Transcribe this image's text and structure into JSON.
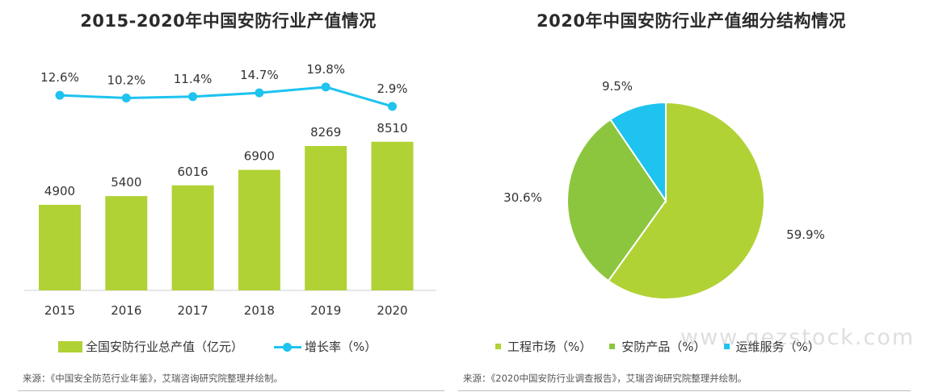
{
  "chart_data": [
    {
      "type": "bar",
      "title": "2015-2020年中国安防行业产值情况",
      "categories": [
        "2015",
        "2016",
        "2017",
        "2018",
        "2019",
        "2020"
      ],
      "series": [
        {
          "name": "全国安防行业总产值（亿元）",
          "values": [
            4900,
            5400,
            6016,
            6900,
            8269,
            8510
          ],
          "color": "#b0d235",
          "type": "bar"
        },
        {
          "name": "增长率（%）",
          "values": [
            12.6,
            10.2,
            11.4,
            14.7,
            19.8,
            2.9
          ],
          "labels": [
            "12.6%",
            "10.2%",
            "11.4%",
            "14.7%",
            "19.8%",
            "2.9%"
          ],
          "color": "#1ec3ef",
          "type": "line"
        }
      ],
      "value_labels": [
        "4900",
        "5400",
        "6016",
        "6900",
        "8269",
        "8510"
      ],
      "legend_position": "bottom",
      "source": "来源：《中国安全防范行业年鉴》，艾瑞咨询研究院整理并绘制。"
    },
    {
      "type": "pie",
      "title": "2020年中国安防行业产值细分结构情况",
      "slices": [
        {
          "name": "工程市场（%）",
          "value": 59.9,
          "label": "59.9%",
          "color": "#b0d235"
        },
        {
          "name": "安防产品（%）",
          "value": 30.6,
          "label": "30.6%",
          "color": "#8cc63f"
        },
        {
          "name": "运维服务（%）",
          "value": 9.5,
          "label": "9.5%",
          "color": "#1ec3ef"
        }
      ],
      "legend_position": "bottom",
      "source": "来源：《2020中国安防行业调查报告》，艾瑞咨询研究院整理并绘制。"
    }
  ],
  "watermark": "www.gezstock.com"
}
